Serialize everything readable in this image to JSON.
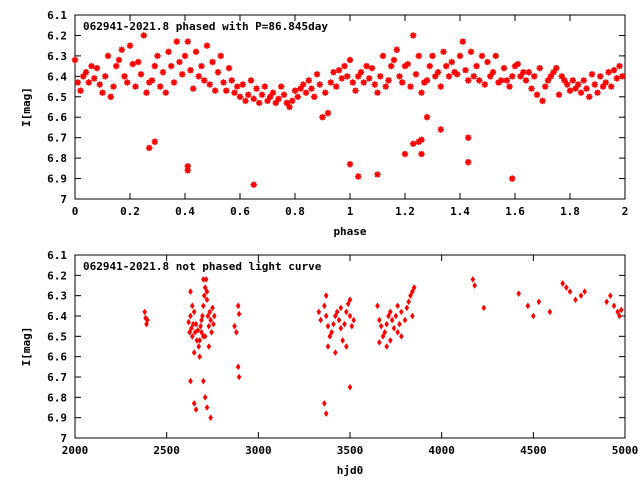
{
  "chart_data": [
    {
      "type": "scatter",
      "title": "062941-2021.8 phased with P=86.845day",
      "xlabel": "phase",
      "ylabel": "I[mag]",
      "xlim": [
        0,
        2
      ],
      "ylim": [
        6.1,
        7.0
      ],
      "y_inverted": true,
      "xticks": [
        "0",
        "0.2",
        "0.4",
        "0.6",
        "0.8",
        "1",
        "1.2",
        "1.4",
        "1.6",
        "1.8",
        "2"
      ],
      "yticks": [
        "6.1",
        "6.2",
        "6.3",
        "6.4",
        "6.5",
        "6.6",
        "6.7",
        "6.8",
        "6.9",
        "7"
      ],
      "marker": "star",
      "color": "#ff0000",
      "grid": false,
      "points": [
        [
          0.0,
          6.32
        ],
        [
          0.01,
          6.43
        ],
        [
          0.02,
          6.47
        ],
        [
          0.03,
          6.4
        ],
        [
          0.04,
          6.38
        ],
        [
          0.05,
          6.43
        ],
        [
          0.06,
          6.35
        ],
        [
          0.07,
          6.41
        ],
        [
          0.08,
          6.36
        ],
        [
          0.09,
          6.44
        ],
        [
          0.1,
          6.48
        ],
        [
          0.11,
          6.4
        ],
        [
          0.12,
          6.3
        ],
        [
          0.13,
          6.5
        ],
        [
          0.14,
          6.45
        ],
        [
          0.15,
          6.35
        ],
        [
          0.16,
          6.32
        ],
        [
          0.17,
          6.27
        ],
        [
          0.18,
          6.4
        ],
        [
          0.19,
          6.43
        ],
        [
          0.2,
          6.25
        ],
        [
          0.21,
          6.34
        ],
        [
          0.22,
          6.45
        ],
        [
          0.23,
          6.33
        ],
        [
          0.24,
          6.39
        ],
        [
          0.25,
          6.2
        ],
        [
          0.26,
          6.48
        ],
        [
          0.27,
          6.43
        ],
        [
          0.28,
          6.42
        ],
        [
          0.29,
          6.35
        ],
        [
          0.3,
          6.3
        ],
        [
          0.31,
          6.45
        ],
        [
          0.32,
          6.38
        ],
        [
          0.33,
          6.48
        ],
        [
          0.34,
          6.28
        ],
        [
          0.35,
          6.35
        ],
        [
          0.36,
          6.43
        ],
        [
          0.37,
          6.23
        ],
        [
          0.38,
          6.33
        ],
        [
          0.39,
          6.39
        ],
        [
          0.4,
          6.3
        ],
        [
          0.41,
          6.23
        ],
        [
          0.42,
          6.37
        ],
        [
          0.43,
          6.46
        ],
        [
          0.44,
          6.28
        ],
        [
          0.45,
          6.4
        ],
        [
          0.46,
          6.35
        ],
        [
          0.47,
          6.42
        ],
        [
          0.48,
          6.25
        ],
        [
          0.49,
          6.44
        ],
        [
          0.5,
          6.33
        ],
        [
          0.51,
          6.47
        ],
        [
          0.52,
          6.38
        ],
        [
          0.53,
          6.3
        ],
        [
          0.54,
          6.43
        ],
        [
          0.55,
          6.47
        ],
        [
          0.56,
          6.36
        ],
        [
          0.57,
          6.42
        ],
        [
          0.58,
          6.48
        ],
        [
          0.59,
          6.45
        ],
        [
          0.6,
          6.5
        ],
        [
          0.61,
          6.44
        ],
        [
          0.62,
          6.52
        ],
        [
          0.63,
          6.49
        ],
        [
          0.64,
          6.42
        ],
        [
          0.65,
          6.51
        ],
        [
          0.66,
          6.46
        ],
        [
          0.67,
          6.53
        ],
        [
          0.68,
          6.49
        ],
        [
          0.69,
          6.45
        ],
        [
          0.7,
          6.52
        ],
        [
          0.71,
          6.5
        ],
        [
          0.72,
          6.48
        ],
        [
          0.73,
          6.53
        ],
        [
          0.74,
          6.51
        ],
        [
          0.75,
          6.45
        ],
        [
          0.76,
          6.49
        ],
        [
          0.77,
          6.53
        ],
        [
          0.78,
          6.55
        ],
        [
          0.79,
          6.52
        ],
        [
          0.8,
          6.47
        ],
        [
          0.81,
          6.5
        ],
        [
          0.82,
          6.46
        ],
        [
          0.83,
          6.44
        ],
        [
          0.84,
          6.48
        ],
        [
          0.85,
          6.42
        ],
        [
          0.86,
          6.46
        ],
        [
          0.87,
          6.5
        ],
        [
          0.88,
          6.39
        ],
        [
          0.89,
          6.44
        ],
        [
          0.9,
          6.6
        ],
        [
          0.91,
          6.48
        ],
        [
          0.92,
          6.58
        ],
        [
          0.93,
          6.43
        ],
        [
          0.94,
          6.38
        ],
        [
          0.95,
          6.45
        ],
        [
          0.96,
          6.37
        ],
        [
          0.97,
          6.41
        ],
        [
          0.98,
          6.35
        ],
        [
          0.99,
          6.4
        ],
        [
          1.0,
          6.32
        ],
        [
          1.01,
          6.43
        ],
        [
          1.02,
          6.47
        ],
        [
          1.03,
          6.4
        ],
        [
          1.04,
          6.38
        ],
        [
          1.05,
          6.43
        ],
        [
          1.06,
          6.35
        ],
        [
          1.07,
          6.41
        ],
        [
          1.08,
          6.36
        ],
        [
          1.09,
          6.44
        ],
        [
          1.1,
          6.48
        ],
        [
          1.11,
          6.4
        ],
        [
          1.12,
          6.3
        ],
        [
          1.13,
          6.45
        ],
        [
          1.14,
          6.42
        ],
        [
          1.15,
          6.35
        ],
        [
          1.16,
          6.32
        ],
        [
          1.17,
          6.27
        ],
        [
          1.18,
          6.4
        ],
        [
          1.19,
          6.43
        ],
        [
          1.2,
          6.35
        ],
        [
          1.21,
          6.34
        ],
        [
          1.22,
          6.45
        ],
        [
          1.23,
          6.2
        ],
        [
          1.24,
          6.39
        ],
        [
          1.25,
          6.3
        ],
        [
          1.26,
          6.48
        ],
        [
          1.27,
          6.43
        ],
        [
          1.28,
          6.42
        ],
        [
          1.29,
          6.35
        ],
        [
          1.3,
          6.3
        ],
        [
          1.31,
          6.4
        ],
        [
          1.32,
          6.38
        ],
        [
          1.33,
          6.45
        ],
        [
          1.34,
          6.28
        ],
        [
          1.35,
          6.35
        ],
        [
          1.36,
          6.4
        ],
        [
          1.37,
          6.33
        ],
        [
          1.38,
          6.38
        ],
        [
          1.39,
          6.39
        ],
        [
          1.4,
          6.3
        ],
        [
          1.41,
          6.23
        ],
        [
          1.42,
          6.37
        ],
        [
          1.43,
          6.42
        ],
        [
          1.44,
          6.28
        ],
        [
          1.45,
          6.4
        ],
        [
          1.46,
          6.35
        ],
        [
          1.47,
          6.42
        ],
        [
          1.48,
          6.3
        ],
        [
          1.49,
          6.44
        ],
        [
          1.5,
          6.33
        ],
        [
          1.51,
          6.4
        ],
        [
          1.52,
          6.38
        ],
        [
          1.53,
          6.3
        ],
        [
          1.54,
          6.43
        ],
        [
          1.55,
          6.42
        ],
        [
          1.56,
          6.36
        ],
        [
          1.57,
          6.42
        ],
        [
          1.58,
          6.45
        ],
        [
          1.59,
          6.4
        ],
        [
          1.6,
          6.35
        ],
        [
          1.61,
          6.34
        ],
        [
          1.62,
          6.4
        ],
        [
          1.63,
          6.38
        ],
        [
          1.64,
          6.42
        ],
        [
          1.65,
          6.38
        ],
        [
          1.66,
          6.46
        ],
        [
          1.67,
          6.4
        ],
        [
          1.68,
          6.49
        ],
        [
          1.69,
          6.36
        ],
        [
          1.7,
          6.52
        ],
        [
          1.71,
          6.45
        ],
        [
          1.72,
          6.42
        ],
        [
          1.73,
          6.4
        ],
        [
          1.74,
          6.38
        ],
        [
          1.75,
          6.36
        ],
        [
          1.76,
          6.49
        ],
        [
          1.77,
          6.4
        ],
        [
          1.78,
          6.42
        ],
        [
          1.79,
          6.44
        ],
        [
          1.8,
          6.47
        ],
        [
          1.81,
          6.42
        ],
        [
          1.82,
          6.46
        ],
        [
          1.83,
          6.44
        ],
        [
          1.84,
          6.48
        ],
        [
          1.85,
          6.42
        ],
        [
          1.86,
          6.46
        ],
        [
          1.87,
          6.5
        ],
        [
          1.88,
          6.39
        ],
        [
          1.89,
          6.44
        ],
        [
          1.9,
          6.48
        ],
        [
          1.91,
          6.4
        ],
        [
          1.92,
          6.45
        ],
        [
          1.93,
          6.43
        ],
        [
          1.94,
          6.38
        ],
        [
          1.95,
          6.45
        ],
        [
          1.96,
          6.37
        ],
        [
          1.97,
          6.41
        ],
        [
          1.98,
          6.35
        ],
        [
          1.99,
          6.4
        ],
        [
          0.27,
          6.75
        ],
        [
          0.29,
          6.72
        ],
        [
          0.41,
          6.84
        ],
        [
          0.41,
          6.86
        ],
        [
          0.65,
          6.93
        ],
        [
          1.0,
          6.83
        ],
        [
          1.03,
          6.89
        ],
        [
          1.1,
          6.88
        ],
        [
          1.2,
          6.78
        ],
        [
          1.25,
          6.72
        ],
        [
          1.26,
          6.78
        ],
        [
          1.33,
          6.66
        ],
        [
          1.43,
          6.82
        ],
        [
          1.59,
          6.9
        ],
        [
          1.23,
          6.73
        ],
        [
          1.26,
          6.71
        ],
        [
          1.43,
          6.7
        ],
        [
          1.28,
          6.6
        ]
      ]
    },
    {
      "type": "scatter",
      "title": "062941-2021.8 not phased light curve",
      "xlabel": "hjd0",
      "ylabel": "I[mag]",
      "xlim": [
        2000,
        5000
      ],
      "ylim": [
        6.1,
        7.0
      ],
      "y_inverted": true,
      "xticks": [
        "2000",
        "2500",
        "3000",
        "3500",
        "4000",
        "4500",
        "5000"
      ],
      "yticks": [
        "6.1",
        "6.2",
        "6.3",
        "6.4",
        "6.5",
        "6.6",
        "6.7",
        "6.8",
        "6.9",
        "7"
      ],
      "marker": "diamond",
      "color": "#ff0000",
      "grid": false,
      "points": [
        [
          2380,
          6.38
        ],
        [
          2385,
          6.41
        ],
        [
          2390,
          6.44
        ],
        [
          2395,
          6.42
        ],
        [
          2620,
          6.43
        ],
        [
          2625,
          6.48
        ],
        [
          2630,
          6.4
        ],
        [
          2635,
          6.46
        ],
        [
          2640,
          6.5
        ],
        [
          2645,
          6.44
        ],
        [
          2650,
          6.38
        ],
        [
          2655,
          6.48
        ],
        [
          2660,
          6.44
        ],
        [
          2665,
          6.52
        ],
        [
          2670,
          6.47
        ],
        [
          2675,
          6.55
        ],
        [
          2680,
          6.6
        ],
        [
          2685,
          6.45
        ],
        [
          2690,
          6.42
        ],
        [
          2695,
          6.4
        ],
        [
          2700,
          6.35
        ],
        [
          2705,
          6.3
        ],
        [
          2710,
          6.26
        ],
        [
          2715,
          6.22
        ],
        [
          2720,
          6.32
        ],
        [
          2725,
          6.4
        ],
        [
          2730,
          6.45
        ],
        [
          2735,
          6.38
        ],
        [
          2740,
          6.42
        ],
        [
          2745,
          6.48
        ],
        [
          2750,
          6.36
        ],
        [
          2755,
          6.44
        ],
        [
          2760,
          6.4
        ],
        [
          2630,
          6.28
        ],
        [
          2640,
          6.35
        ],
        [
          2700,
          6.22
        ],
        [
          2710,
          6.5
        ],
        [
          2720,
          6.28
        ],
        [
          2650,
          6.58
        ],
        [
          2680,
          6.52
        ],
        [
          2690,
          6.48
        ],
        [
          2730,
          6.55
        ],
        [
          2700,
          6.5
        ],
        [
          2630,
          6.72
        ],
        [
          2650,
          6.83
        ],
        [
          2660,
          6.86
        ],
        [
          2700,
          6.72
        ],
        [
          2710,
          6.8
        ],
        [
          2720,
          6.85
        ],
        [
          2740,
          6.9
        ],
        [
          2870,
          6.45
        ],
        [
          2880,
          6.48
        ],
        [
          2890,
          6.35
        ],
        [
          2895,
          6.39
        ],
        [
          2890,
          6.65
        ],
        [
          2895,
          6.7
        ],
        [
          3330,
          6.38
        ],
        [
          3340,
          6.42
        ],
        [
          3360,
          6.35
        ],
        [
          3370,
          6.4
        ],
        [
          3380,
          6.45
        ],
        [
          3390,
          6.5
        ],
        [
          3400,
          6.48
        ],
        [
          3410,
          6.44
        ],
        [
          3420,
          6.4
        ],
        [
          3430,
          6.38
        ],
        [
          3440,
          6.42
        ],
        [
          3450,
          6.46
        ],
        [
          3460,
          6.52
        ],
        [
          3470,
          6.44
        ],
        [
          3480,
          6.38
        ],
        [
          3490,
          6.34
        ],
        [
          3500,
          6.4
        ],
        [
          3510,
          6.45
        ],
        [
          3520,
          6.42
        ],
        [
          3370,
          6.3
        ],
        [
          3380,
          6.55
        ],
        [
          3420,
          6.58
        ],
        [
          3450,
          6.36
        ],
        [
          3480,
          6.55
        ],
        [
          3500,
          6.32
        ],
        [
          3360,
          6.83
        ],
        [
          3370,
          6.88
        ],
        [
          3500,
          6.75
        ],
        [
          3650,
          6.35
        ],
        [
          3660,
          6.42
        ],
        [
          3670,
          6.45
        ],
        [
          3680,
          6.5
        ],
        [
          3690,
          6.48
        ],
        [
          3700,
          6.44
        ],
        [
          3710,
          6.4
        ],
        [
          3720,
          6.38
        ],
        [
          3730,
          6.42
        ],
        [
          3740,
          6.46
        ],
        [
          3750,
          6.4
        ],
        [
          3760,
          6.35
        ],
        [
          3770,
          6.44
        ],
        [
          3780,
          6.38
        ],
        [
          3800,
          6.42
        ],
        [
          3810,
          6.36
        ],
        [
          3820,
          6.33
        ],
        [
          3830,
          6.3
        ],
        [
          3840,
          6.28
        ],
        [
          3850,
          6.26
        ],
        [
          3660,
          6.53
        ],
        [
          3700,
          6.55
        ],
        [
          3720,
          6.52
        ],
        [
          3760,
          6.48
        ],
        [
          3780,
          6.5
        ],
        [
          3840,
          6.4
        ],
        [
          4170,
          6.22
        ],
        [
          4180,
          6.25
        ],
        [
          4230,
          6.36
        ],
        [
          4420,
          6.29
        ],
        [
          4470,
          6.35
        ],
        [
          4500,
          6.4
        ],
        [
          4530,
          6.33
        ],
        [
          4590,
          6.38
        ],
        [
          4660,
          6.24
        ],
        [
          4680,
          6.26
        ],
        [
          4700,
          6.28
        ],
        [
          4730,
          6.32
        ],
        [
          4760,
          6.3
        ],
        [
          4780,
          6.28
        ],
        [
          4900,
          6.33
        ],
        [
          4920,
          6.3
        ],
        [
          4940,
          6.35
        ],
        [
          4960,
          6.38
        ],
        [
          4970,
          6.4
        ],
        [
          4980,
          6.37
        ]
      ]
    }
  ]
}
